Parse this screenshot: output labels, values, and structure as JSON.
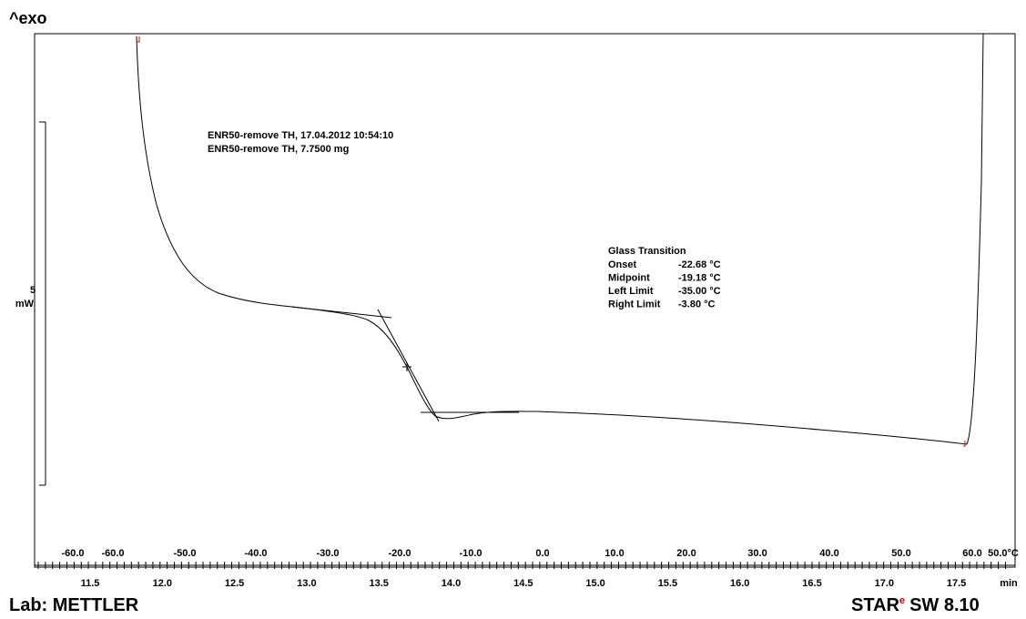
{
  "header": {
    "title": "^exo"
  },
  "scale": {
    "value": "5",
    "unit": "mW"
  },
  "annotations": [
    "ENR50-remove TH, 17.04.2012 10:54:10",
    "ENR50-remove TH, 7.7500 mg"
  ],
  "glass_transition": {
    "title": "Glass Transition",
    "rows": [
      [
        "Onset",
        "-22.68 °C"
      ],
      [
        "Midpoint",
        "-19.18 °C"
      ],
      [
        "Left Limit",
        "-35.00 °C"
      ],
      [
        "Right Limit",
        "-3.80 °C"
      ]
    ]
  },
  "temperature_axis": [
    "-60.0",
    "-60.0",
    "-50.0",
    "-40.0",
    "-30.0",
    "-20.0",
    "-10.0",
    "0.0",
    "10.0",
    "20.0",
    "30.0",
    "40.0",
    "50.0",
    "60.0",
    "50.0°C"
  ],
  "time_axis": {
    "labels": [
      "11.5",
      "12.0",
      "12.5",
      "13.0",
      "13.5",
      "14.0",
      "14.5",
      "15.0",
      "15.5",
      "16.0",
      "16.5",
      "17.0",
      "17.5"
    ],
    "unit": "min"
  },
  "footer": {
    "lab": "Lab: METTLER",
    "software_brand": "STAR",
    "software_sup": "e",
    "software_version": "SW 8.10"
  }
}
